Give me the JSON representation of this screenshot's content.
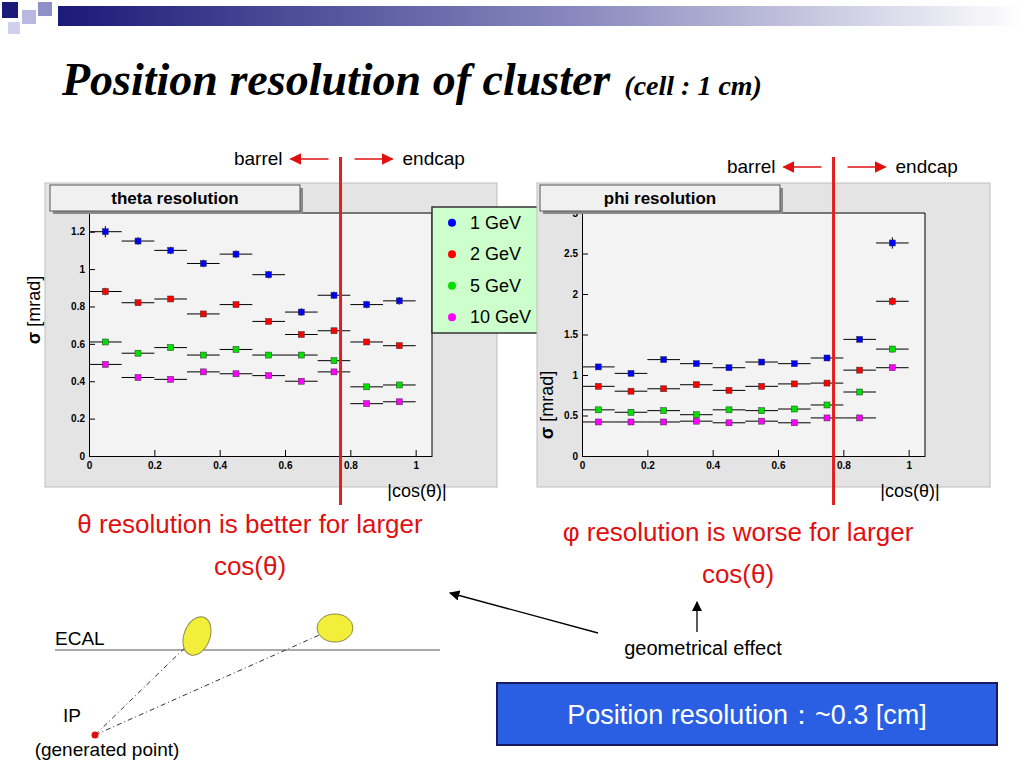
{
  "slide": {
    "title": "Position resolution of cluster",
    "subtitle": "(cell : 1 cm)",
    "diagram": {
      "surface": "ECAL",
      "origin": "IP",
      "origin_note": "(generated point)"
    },
    "arrow_label": "geometrical effect",
    "summary": "Position resolution：~0.3 [cm]"
  },
  "chart_data": [
    {
      "type": "scatter",
      "title": "theta resolution",
      "x_label": "|cos(θ)|",
      "y_label": "σ [mrad]",
      "marker": "square",
      "grid": false,
      "legend": "top-right",
      "x": [
        0.05,
        0.15,
        0.25,
        0.35,
        0.45,
        0.55,
        0.65,
        0.75,
        0.85,
        0.95
      ],
      "xerr": [
        0.05,
        0.05,
        0.05,
        0.05,
        0.05,
        0.05,
        0.05,
        0.05,
        0.05,
        0.05
      ],
      "xlim": [
        0,
        1.05
      ],
      "xticks": [
        0,
        0.2,
        0.4,
        0.6,
        0.8,
        1
      ],
      "ylim": [
        0,
        1.3
      ],
      "yticks": [
        0,
        0.2,
        0.4,
        0.6,
        0.8,
        1,
        1.2
      ],
      "series": [
        {
          "name": "1 GeV",
          "color": "#0000ff",
          "values": [
            1.2,
            1.15,
            1.1,
            1.03,
            1.08,
            0.97,
            0.77,
            0.86,
            0.81,
            0.83
          ],
          "yerr": [
            0.03,
            0.02,
            0.02,
            0.02,
            0.02,
            0.02,
            0.02,
            0.02,
            0.02,
            0.02
          ]
        },
        {
          "name": "2 GeV",
          "color": "#ff0000",
          "values": [
            0.88,
            0.82,
            0.84,
            0.76,
            0.81,
            0.72,
            0.65,
            0.67,
            0.61,
            0.59
          ],
          "yerr": [
            0.02,
            0.01,
            0.01,
            0.01,
            0.01,
            0.01,
            0.01,
            0.01,
            0.01,
            0.01
          ]
        },
        {
          "name": "5 GeV",
          "color": "#00e000",
          "values": [
            0.61,
            0.55,
            0.58,
            0.54,
            0.57,
            0.54,
            0.54,
            0.51,
            0.37,
            0.38
          ],
          "yerr": [
            0.01,
            0.01,
            0.01,
            0.01,
            0.01,
            0.01,
            0.01,
            0.01,
            0.01,
            0.01
          ]
        },
        {
          "name": "10 GeV",
          "color": "#ff00ff",
          "values": [
            0.49,
            0.42,
            0.41,
            0.45,
            0.44,
            0.43,
            0.4,
            0.45,
            0.28,
            0.29
          ],
          "yerr": [
            0.01,
            0.01,
            0.01,
            0.01,
            0.01,
            0.01,
            0.01,
            0.01,
            0.01,
            0.01
          ]
        }
      ],
      "annotations": {
        "boundary": 0.77,
        "left_label": "barrel",
        "right_label": "endcap",
        "note": "θ resolution is better for larger cos(θ)"
      }
    },
    {
      "type": "scatter",
      "title": "phi resolution",
      "x_label": "|cos(θ)|",
      "y_label": "σ [mrad]",
      "marker": "square",
      "grid": false,
      "x": [
        0.05,
        0.15,
        0.25,
        0.35,
        0.45,
        0.55,
        0.65,
        0.75,
        0.85,
        0.95
      ],
      "xerr": [
        0.05,
        0.05,
        0.05,
        0.05,
        0.05,
        0.05,
        0.05,
        0.05,
        0.05,
        0.05
      ],
      "xlim": [
        0,
        1.05
      ],
      "xticks": [
        0,
        0.2,
        0.4,
        0.6,
        0.8,
        1
      ],
      "ylim": [
        0,
        3
      ],
      "yticks": [
        0,
        0.5,
        1,
        1.5,
        2,
        2.5,
        3
      ],
      "series": [
        {
          "color": "#0000ff",
          "values": [
            1.1,
            1.02,
            1.19,
            1.14,
            1.09,
            1.16,
            1.14,
            1.21,
            1.44,
            2.63
          ],
          "yerr": [
            0.02,
            0.02,
            0.02,
            0.02,
            0.02,
            0.02,
            0.02,
            0.03,
            0.03,
            0.07
          ]
        },
        {
          "color": "#ff0000",
          "values": [
            0.86,
            0.8,
            0.83,
            0.88,
            0.81,
            0.86,
            0.89,
            0.9,
            1.06,
            1.91
          ],
          "yerr": [
            0.01,
            0.01,
            0.01,
            0.01,
            0.01,
            0.01,
            0.01,
            0.02,
            0.02,
            0.05
          ]
        },
        {
          "color": "#00e000",
          "values": [
            0.57,
            0.54,
            0.56,
            0.51,
            0.57,
            0.56,
            0.58,
            0.63,
            0.79,
            1.32
          ],
          "yerr": [
            0.01,
            0.01,
            0.01,
            0.01,
            0.01,
            0.01,
            0.01,
            0.01,
            0.02,
            0.04
          ]
        },
        {
          "color": "#ff00ff",
          "values": [
            0.42,
            0.42,
            0.42,
            0.43,
            0.41,
            0.43,
            0.41,
            0.47,
            0.47,
            1.09
          ],
          "yerr": [
            0.01,
            0.01,
            0.01,
            0.01,
            0.01,
            0.01,
            0.01,
            0.01,
            0.01,
            0.02
          ]
        }
      ],
      "annotations": {
        "boundary": 0.77,
        "left_label": "barrel",
        "right_label": "endcap",
        "note": "φ resolution is worse for larger cos(θ)"
      }
    }
  ]
}
